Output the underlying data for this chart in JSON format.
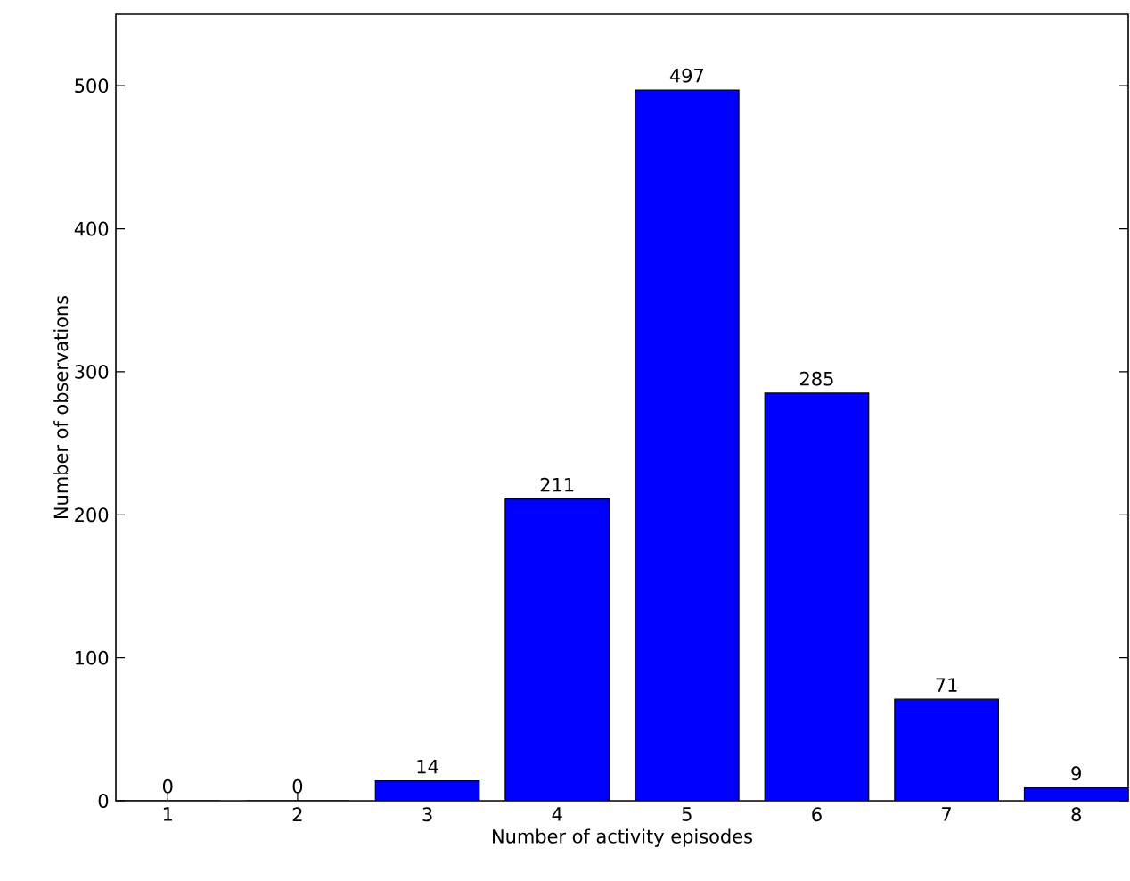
{
  "chart_data": {
    "type": "bar",
    "xlabel": "Number of activity episodes",
    "ylabel": "Number of observations",
    "categories": [
      "1",
      "2",
      "3",
      "4",
      "5",
      "6",
      "7",
      "8"
    ],
    "values": [
      0,
      0,
      14,
      211,
      497,
      285,
      71,
      9
    ],
    "color": "#0000ff",
    "ylim": [
      0,
      550
    ],
    "yticks": [
      0,
      100,
      200,
      300,
      400,
      500
    ],
    "data_labels": true,
    "grid": false
  }
}
